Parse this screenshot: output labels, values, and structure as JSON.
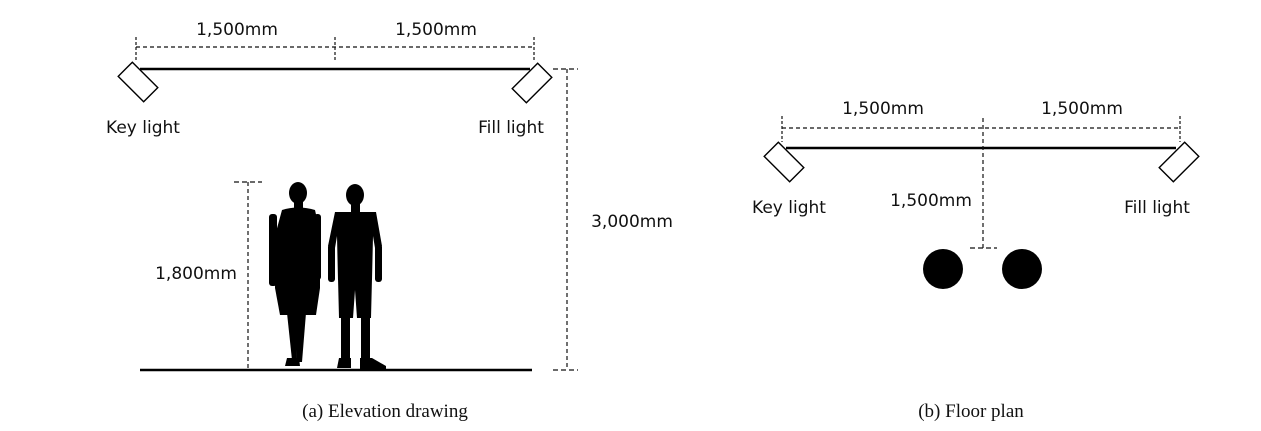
{
  "elevation": {
    "dim_left": "1,500mm",
    "dim_right": "1,500mm",
    "key_light_label": "Key light",
    "fill_light_label": "Fill light",
    "height_person": "1,800mm",
    "height_ceiling": "3,000mm",
    "caption": "(a) Elevation drawing"
  },
  "floor_plan": {
    "dim_left": "1,500mm",
    "dim_right": "1,500mm",
    "key_light_label": "Key light",
    "fill_light_label": "Fill light",
    "dim_distance": "1,500mm",
    "caption": "(b) Floor plan"
  }
}
